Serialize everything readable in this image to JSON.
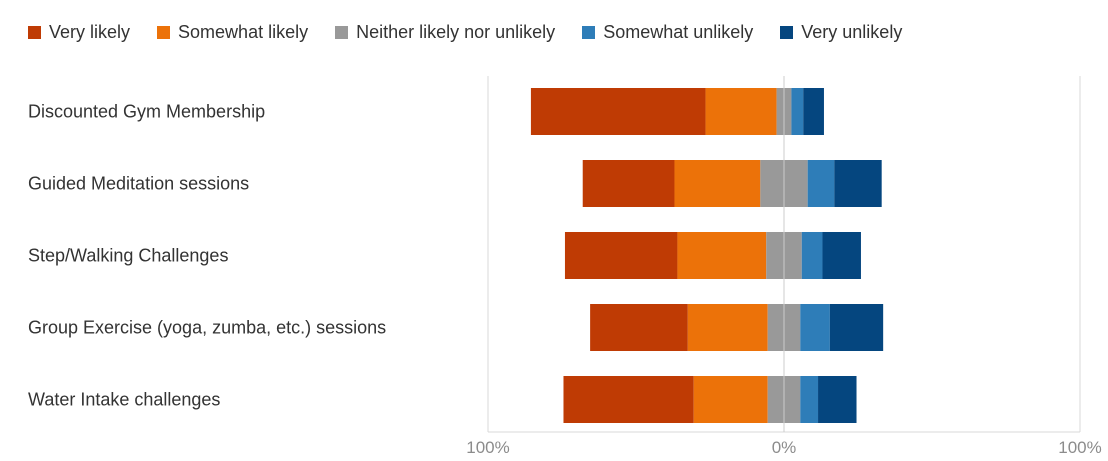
{
  "chart_data": {
    "type": "bar",
    "orientation": "horizontal-diverging",
    "title": "",
    "xlabel": "",
    "ylabel": "",
    "xlim": [
      -100,
      100
    ],
    "tick_labels": [
      "100%",
      "0%",
      "100%"
    ],
    "legend": "top-left",
    "categories": [
      "Discounted Gym Membership",
      "Guided Meditation sessions",
      "Step/Walking Challenges",
      "Group Exercise (yoga, zumba, etc.) sessions",
      "Water Intake challenges"
    ],
    "series": [
      {
        "name": "Very likely",
        "color": "#BF3B04",
        "values": [
          59,
          31,
          38,
          33,
          44
        ]
      },
      {
        "name": "Somewhat likely",
        "color": "#EC7209",
        "values": [
          24,
          29,
          30,
          27,
          25
        ]
      },
      {
        "name": "Neither likely nor unlikely",
        "color": "#999999",
        "values": [
          5,
          16,
          12,
          11,
          11
        ]
      },
      {
        "name": "Somewhat unlikely",
        "color": "#2E7DB8",
        "values": [
          4,
          9,
          7,
          10,
          6
        ]
      },
      {
        "name": "Very unlikely",
        "color": "#05467F",
        "values": [
          7,
          16,
          13,
          18,
          13
        ]
      }
    ]
  }
}
